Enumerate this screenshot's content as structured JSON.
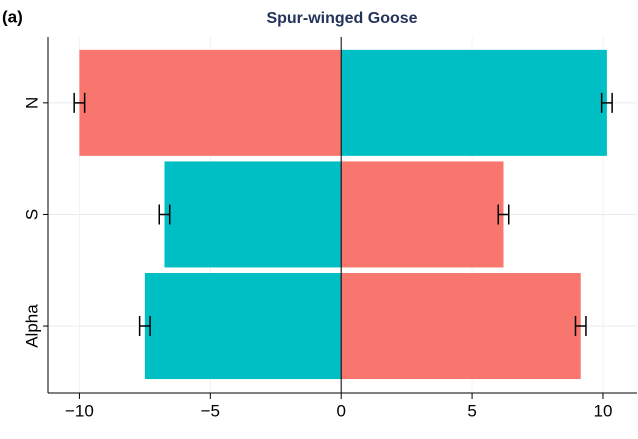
{
  "chart_data": {
    "type": "diverging_bar",
    "panel_label": "(a)",
    "title": "Spur-winged Goose",
    "categories": [
      "N",
      "S",
      "Alpha"
    ],
    "series": [
      {
        "values": [
          -10,
          -6.75,
          -7.5
        ],
        "errors": [
          0.2,
          0.2,
          0.2
        ],
        "colors": [
          "#f8766d",
          "#00bfc4",
          "#00bfc4"
        ]
      },
      {
        "values": [
          10.15,
          6.2,
          9.15
        ],
        "errors": [
          0.2,
          0.2,
          0.2
        ],
        "colors": [
          "#00bfc4",
          "#f8766d",
          "#f8766d"
        ]
      }
    ],
    "xlim": [
      -11.2,
      11.3
    ],
    "xticks": [
      {
        "value": -10,
        "label": "−10"
      },
      {
        "value": -5,
        "label": "−5"
      },
      0,
      5,
      10
    ],
    "grid": true
  }
}
